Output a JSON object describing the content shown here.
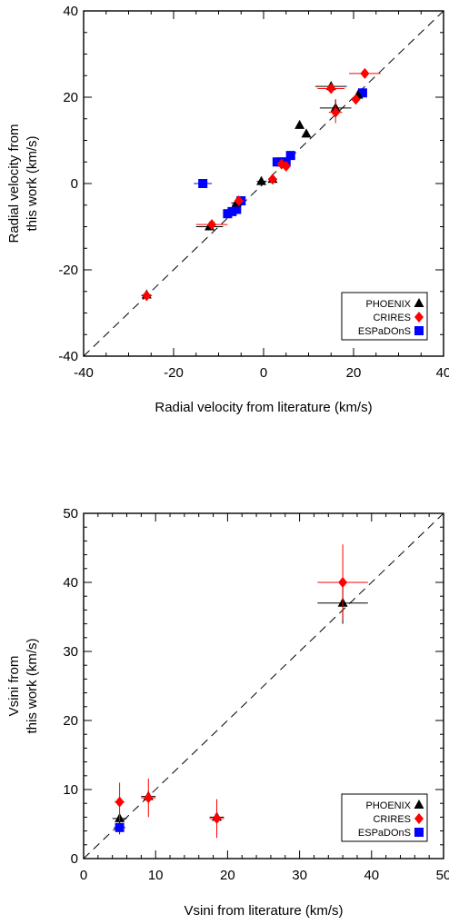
{
  "chart_data": [
    {
      "type": "scatter",
      "title": "",
      "xlabel": "Radial velocity from literature (km/s)",
      "ylabel": [
        "Radial velocity from",
        "this work (km/s)"
      ],
      "xlim": [
        -40,
        40
      ],
      "ylim": [
        -40,
        40
      ],
      "xticks": [
        "-40",
        "-20",
        "0",
        "20",
        "40"
      ],
      "yticks": [
        "-40",
        "-20",
        "0",
        "20",
        "40"
      ],
      "reference_line": "y = x (dashed)",
      "legend_position": "bottom-right",
      "series": [
        {
          "name": "PHOENIX",
          "color": "#000000",
          "marker": "triangle",
          "points": [
            {
              "x": -26,
              "y": -25.8,
              "xerr": 1.0,
              "yerr": 1.0
            },
            {
              "x": -12,
              "y": -10.0,
              "xerr": 3.0,
              "yerr": 0.8
            },
            {
              "x": -6,
              "y": -4.5,
              "xerr": 1.2,
              "yerr": 0.8
            },
            {
              "x": -0.5,
              "y": 0.5,
              "xerr": 1.0,
              "yerr": 1.0
            },
            {
              "x": 2,
              "y": 1.0,
              "xerr": 1.0,
              "yerr": 1.0
            },
            {
              "x": 8,
              "y": 13.5,
              "xerr": 0.5,
              "yerr": 0.5
            },
            {
              "x": 9.5,
              "y": 11.5,
              "xerr": 0.5,
              "yerr": 0.5
            },
            {
              "x": 15,
              "y": 22.5,
              "xerr": 3.5,
              "yerr": 0.8
            },
            {
              "x": 16,
              "y": 17.5,
              "xerr": 3.5,
              "yerr": 2.0
            },
            {
              "x": 21,
              "y": 20.5,
              "xerr": 0.5,
              "yerr": 0.5
            }
          ]
        },
        {
          "name": "CRIRES",
          "color": "#ff0000",
          "marker": "diamond",
          "points": [
            {
              "x": -26,
              "y": -26.0,
              "xerr": 1.2,
              "yerr": 1.0
            },
            {
              "x": -11.5,
              "y": -9.5,
              "xerr": 3.5,
              "yerr": 1.0
            },
            {
              "x": -5.5,
              "y": -4.0,
              "xerr": 1.0,
              "yerr": 1.0
            },
            {
              "x": 2,
              "y": 1.0,
              "xerr": 1.0,
              "yerr": 1.0
            },
            {
              "x": 4,
              "y": 4.5,
              "xerr": 1.0,
              "yerr": 1.0
            },
            {
              "x": 5,
              "y": 4.0,
              "xerr": 1.0,
              "yerr": 1.0
            },
            {
              "x": 15,
              "y": 22.0,
              "xerr": 3.0,
              "yerr": 1.0
            },
            {
              "x": 16,
              "y": 16.5,
              "xerr": 1.5,
              "yerr": 2.5
            },
            {
              "x": 20.5,
              "y": 19.5,
              "xerr": 1.0,
              "yerr": 1.0
            },
            {
              "x": 22.5,
              "y": 25.5,
              "xerr": 3.5,
              "yerr": 1.0
            }
          ]
        },
        {
          "name": "ESPaDOnS",
          "color": "#0000ff",
          "marker": "square",
          "points": [
            {
              "x": -13.5,
              "y": 0.0,
              "xerr": 2.0,
              "yerr": 0.5
            },
            {
              "x": -8,
              "y": -7.0,
              "xerr": 1.0,
              "yerr": 0.8
            },
            {
              "x": -7,
              "y": -6.5,
              "xerr": 0.8,
              "yerr": 0.8
            },
            {
              "x": -6,
              "y": -6.0,
              "xerr": 0.8,
              "yerr": 0.8
            },
            {
              "x": -5,
              "y": -4.0,
              "xerr": 1.0,
              "yerr": 0.8
            },
            {
              "x": 3,
              "y": 5.0,
              "xerr": 0.8,
              "yerr": 0.8
            },
            {
              "x": 4,
              "y": 5.0,
              "xerr": 0.8,
              "yerr": 0.8
            },
            {
              "x": 5,
              "y": 5.0,
              "xerr": 0.8,
              "yerr": 0.8
            },
            {
              "x": 6,
              "y": 6.5,
              "xerr": 1.0,
              "yerr": 0.6
            },
            {
              "x": 22,
              "y": 21.0,
              "xerr": 1.0,
              "yerr": 0.8
            }
          ]
        }
      ]
    },
    {
      "type": "scatter",
      "title": "",
      "xlabel": "Vsini from literature (km/s)",
      "ylabel": [
        "Vsini from",
        "this work (km/s)"
      ],
      "xlim": [
        0,
        50
      ],
      "ylim": [
        0,
        50
      ],
      "xticks": [
        "0",
        "10",
        "20",
        "30",
        "40",
        "50"
      ],
      "yticks": [
        "0",
        "10",
        "20",
        "30",
        "40",
        "50"
      ],
      "reference_line": "y = x (dashed)",
      "legend_position": "bottom-right",
      "series": [
        {
          "name": "PHOENIX",
          "color": "#000000",
          "marker": "triangle",
          "points": [
            {
              "x": 5,
              "y": 5.8,
              "xerr": 1.0,
              "yerr": 0.6
            },
            {
              "x": 9,
              "y": 9.0,
              "xerr": 1.0,
              "yerr": 0.8
            },
            {
              "x": 18.5,
              "y": 6.0,
              "xerr": 1.0,
              "yerr": 1.0
            },
            {
              "x": 36,
              "y": 37.0,
              "xerr": 3.5,
              "yerr": 3.0
            }
          ]
        },
        {
          "name": "CRIRES",
          "color": "#ff0000",
          "marker": "diamond",
          "points": [
            {
              "x": 5,
              "y": 8.2,
              "xerr": 0.7,
              "yerr": 2.8
            },
            {
              "x": 9,
              "y": 8.8,
              "xerr": 1.0,
              "yerr": 2.8
            },
            {
              "x": 18.5,
              "y": 5.8,
              "xerr": 1.0,
              "yerr": 2.8
            },
            {
              "x": 36,
              "y": 40.0,
              "xerr": 3.5,
              "yerr": 5.5
            }
          ]
        },
        {
          "name": "ESPaDOnS",
          "color": "#0000ff",
          "marker": "square",
          "points": [
            {
              "x": 5,
              "y": 4.5,
              "xerr": 0.8,
              "yerr": 1.0
            }
          ]
        }
      ]
    }
  ]
}
